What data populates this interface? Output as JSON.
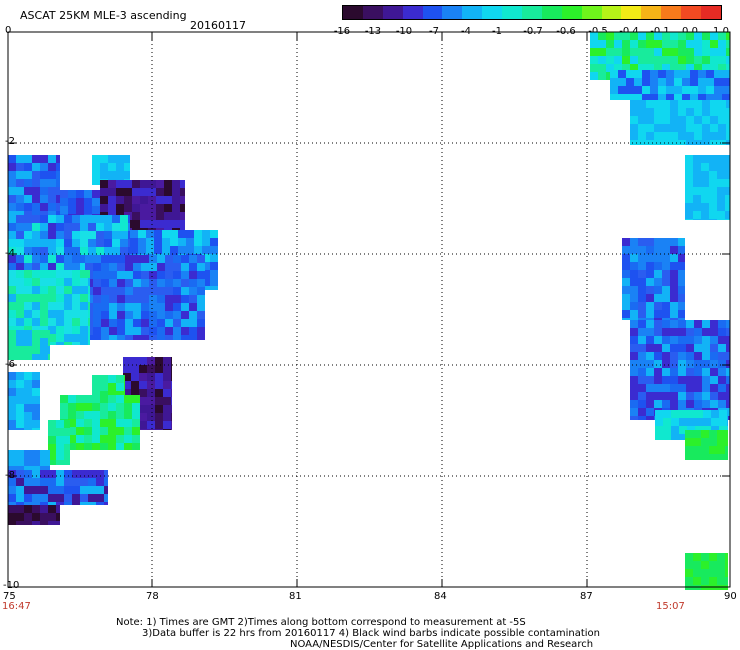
{
  "header": {
    "title": "ASCAT 25KM MLE-3 ascending",
    "date": "20160117"
  },
  "colorbar": {
    "tick_labels": [
      "-16",
      "-13",
      "-10",
      "-7",
      "-4",
      "-1",
      "-0.7",
      "-0.6",
      "-0.5",
      "-0.4",
      "-0.1",
      "0.0",
      "1.0"
    ],
    "colors": [
      "#2b0a2e",
      "#3a0f60",
      "#3f1795",
      "#3b2bd0",
      "#1e52f0",
      "#1a82f5",
      "#12b3f6",
      "#10d7f0",
      "#10e8cf",
      "#18eb9c",
      "#18ea5d",
      "#2cf02a",
      "#6ff41c",
      "#b6f318",
      "#f2ea16",
      "#f6b417",
      "#f77a1b",
      "#f24a22",
      "#e62b24"
    ]
  },
  "map": {
    "y_axis_labels": [
      "0",
      "-2",
      "-4",
      "-6",
      "-8",
      "-10"
    ],
    "x_axis_labels": [
      "75",
      "78",
      "81",
      "84",
      "87",
      "90"
    ],
    "time_left": "16:47",
    "time_right": "15:07"
  },
  "footer": {
    "line1": "Note: 1) Times are GMT 2)Times along bottom correspond to measurement at -5S",
    "line2": "3)Data buffer is 22 hrs from 20160117 4) Black wind barbs indicate possible contamination",
    "line3": "NOAA/NESDIS/Center for Satellite Applications and Research"
  }
}
